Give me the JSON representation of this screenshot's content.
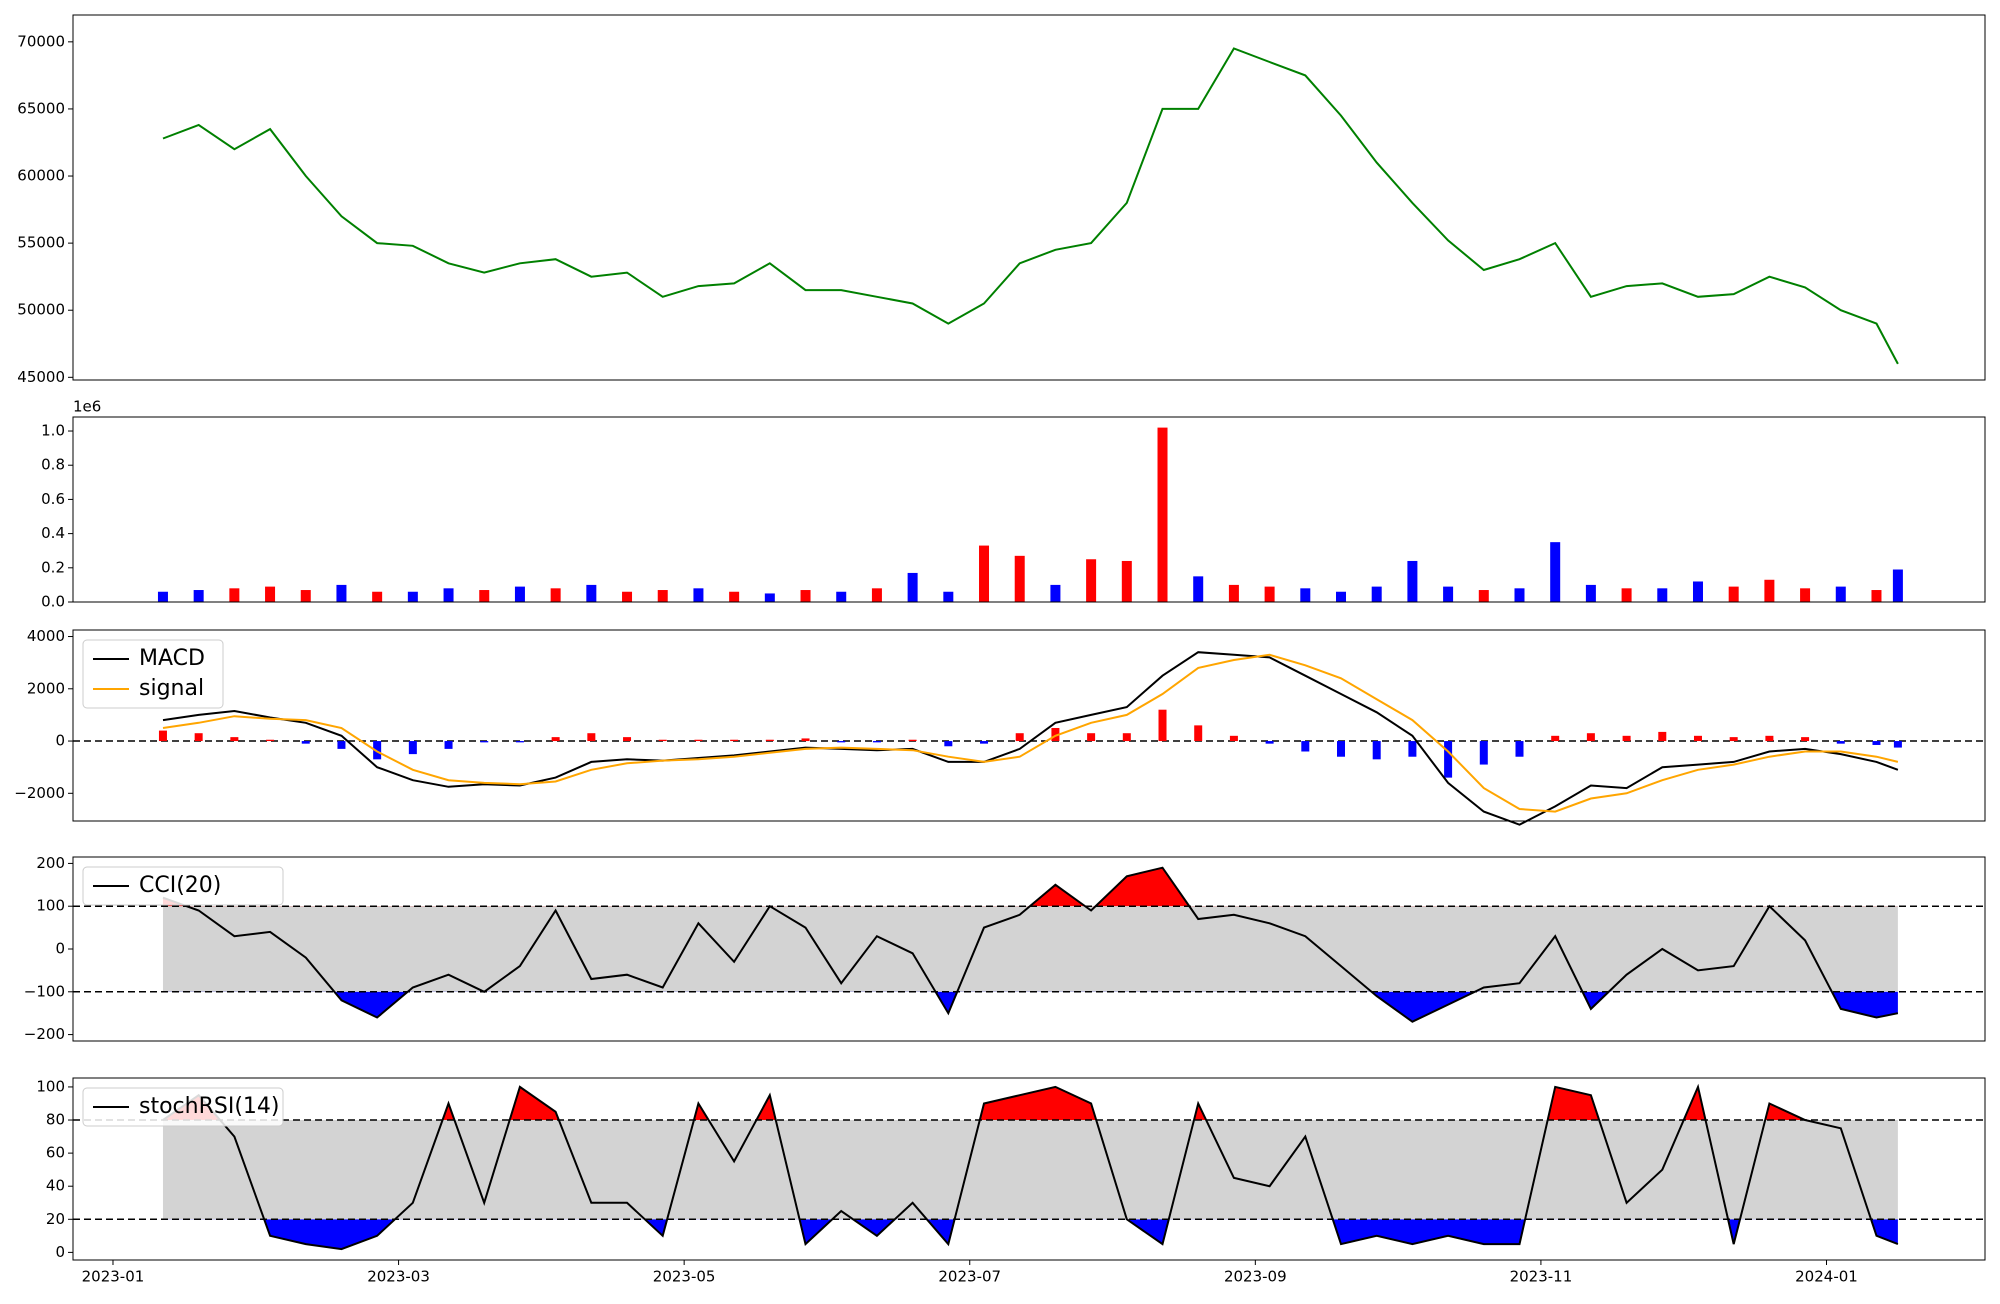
{
  "chart_data": [
    {
      "type": "line",
      "x": [
        0.35,
        0.6,
        0.85,
        1.1,
        1.35,
        1.6,
        1.85,
        2.1,
        2.35,
        2.6,
        2.85,
        3.1,
        3.35,
        3.6,
        3.85,
        4.1,
        4.35,
        4.6,
        4.85,
        5.1,
        5.35,
        5.6,
        5.85,
        6.1,
        6.35,
        6.6,
        6.85,
        7.1,
        7.35,
        7.6,
        7.85,
        8.1,
        8.35,
        8.6,
        8.85,
        9.1,
        9.35,
        9.6,
        9.85,
        10.1,
        10.35,
        10.6,
        10.85,
        11.1,
        11.35,
        11.6,
        11.85,
        12.1,
        12.35,
        12.5
      ],
      "series": [
        {
          "color": "green",
          "values": [
            62800,
            63800,
            62000,
            63500,
            60000,
            57000,
            55000,
            54800,
            53500,
            52800,
            53500,
            53800,
            52500,
            52800,
            51000,
            51800,
            52000,
            53500,
            51500,
            51500,
            51000,
            50500,
            49000,
            50500,
            53500,
            54500,
            55000,
            58000,
            65000,
            65000,
            69500,
            68500,
            67500,
            64500,
            61000,
            58000,
            55200,
            53000,
            53800,
            55000,
            51000,
            51800,
            52000,
            51000,
            51200,
            52500,
            51700,
            50000,
            49000,
            46000
          ]
        }
      ],
      "ylim": [
        44800,
        72000
      ],
      "yticks": [
        45000,
        50000,
        55000,
        60000,
        65000,
        70000
      ]
    },
    {
      "type": "bar",
      "values": [
        60000,
        70000,
        80000,
        90000,
        70000,
        100000,
        60000,
        60000,
        80000,
        70000,
        90000,
        80000,
        100000,
        60000,
        70000,
        80000,
        60000,
        50000,
        70000,
        60000,
        80000,
        170000,
        60000,
        330000,
        270000,
        100000,
        250000,
        240000,
        1020000,
        150000,
        100000,
        90000,
        80000,
        60000,
        90000,
        240000,
        90000,
        70000,
        80000,
        350000,
        100000,
        80000,
        80000,
        120000,
        90000,
        130000,
        80000,
        90000,
        70000,
        190000
      ],
      "colors": [
        "blue",
        "blue",
        "red",
        "red",
        "red",
        "blue",
        "red",
        "blue",
        "blue",
        "red",
        "blue",
        "red",
        "blue",
        "red",
        "red",
        "blue",
        "red",
        "blue",
        "red",
        "blue",
        "red",
        "blue",
        "blue",
        "red",
        "red",
        "blue",
        "red",
        "red",
        "red",
        "blue",
        "red",
        "red",
        "blue",
        "blue",
        "blue",
        "blue",
        "blue",
        "red",
        "blue",
        "blue",
        "blue",
        "red",
        "blue",
        "blue",
        "red",
        "red",
        "red",
        "blue",
        "red",
        "blue"
      ],
      "ylim": [
        0,
        1082000
      ],
      "yticks": [
        {
          "value": 0,
          "label": "0.0"
        },
        {
          "value": 200000,
          "label": "0.2"
        },
        {
          "value": 400000,
          "label": "0.4"
        },
        {
          "value": 600000,
          "label": "0.6"
        },
        {
          "value": 800000,
          "label": "0.8"
        },
        {
          "value": 1000000,
          "label": "1.0"
        }
      ],
      "offset_label": "1e6"
    },
    {
      "type": "macd",
      "series": [
        {
          "name": "MACD",
          "color": "black",
          "values": [
            800,
            1000,
            1150,
            900,
            700,
            200,
            -1000,
            -1500,
            -1750,
            -1650,
            -1700,
            -1400,
            -800,
            -700,
            -750,
            -650,
            -550,
            -400,
            -250,
            -300,
            -350,
            -300,
            -800,
            -800,
            -300,
            700,
            1000,
            1300,
            2500,
            3400,
            3300,
            3200,
            2500,
            1800,
            1100,
            200,
            -1600,
            -2700,
            -3200,
            -2500,
            -1700,
            -1800,
            -1000,
            -900,
            -800,
            -400,
            -300,
            -500,
            -800,
            -1100
          ]
        },
        {
          "name": "signal",
          "color": "orange",
          "values": [
            500,
            700,
            950,
            850,
            800,
            500,
            -400,
            -1100,
            -1500,
            -1600,
            -1650,
            -1550,
            -1100,
            -850,
            -750,
            -700,
            -600,
            -450,
            -300,
            -250,
            -300,
            -350,
            -600,
            -800,
            -600,
            200,
            700,
            1000,
            1800,
            2800,
            3100,
            3300,
            2900,
            2400,
            1600,
            800,
            -400,
            -1800,
            -2600,
            -2700,
            -2200,
            -2000,
            -1500,
            -1100,
            -900,
            -600,
            -400,
            -400,
            -600,
            -800
          ]
        }
      ],
      "histogram": {
        "pos_color": "red",
        "neg_color": "blue",
        "values": [
          400,
          300,
          150,
          50,
          -100,
          -300,
          -700,
          -500,
          -300,
          -50,
          -50,
          150,
          300,
          150,
          50,
          50,
          50,
          50,
          100,
          -50,
          -50,
          50,
          -200,
          -100,
          300,
          500,
          300,
          300,
          1200,
          600,
          200,
          -100,
          -400,
          -600,
          -700,
          -600,
          -1400,
          -900,
          -600,
          200,
          300,
          200,
          350,
          200,
          150,
          200,
          150,
          -100,
          -150,
          -250
        ]
      },
      "hlines": [
        0
      ],
      "legend": "upper left",
      "ylim": [
        -3060,
        4250
      ],
      "yticks": [
        {
          "value": -2000,
          "label": "−2000"
        },
        0,
        2000,
        4000
      ]
    },
    {
      "type": "oscillator",
      "series": [
        {
          "name": "CCI(20)",
          "color": "black",
          "values": [
            120,
            90,
            30,
            40,
            -20,
            -120,
            -160,
            -90,
            -60,
            -100,
            -40,
            90,
            -70,
            -60,
            -90,
            60,
            -30,
            100,
            50,
            -80,
            30,
            -10,
            -150,
            50,
            80,
            150,
            90,
            170,
            190,
            70,
            80,
            60,
            30,
            -40,
            -110,
            -170,
            -130,
            -90,
            -80,
            30,
            -140,
            -60,
            0,
            -50,
            -40,
            100,
            20,
            -140,
            -160,
            -150
          ]
        }
      ],
      "band": [
        -100,
        100
      ],
      "band_color": "lightgray",
      "upper_color": "red",
      "lower_color": "blue",
      "legend": "upper left",
      "ylim": [
        -215,
        215
      ],
      "yticks": [
        {
          "value": -200,
          "label": "−200"
        },
        {
          "value": -100,
          "label": "−100"
        },
        0,
        100,
        200
      ]
    },
    {
      "type": "oscillator",
      "series": [
        {
          "name": "stochRSI(14)",
          "color": "black",
          "values": [
            80,
            95,
            70,
            10,
            5,
            2,
            10,
            30,
            90,
            30,
            100,
            85,
            30,
            30,
            10,
            90,
            55,
            95,
            5,
            25,
            10,
            30,
            5,
            90,
            95,
            100,
            90,
            20,
            5,
            90,
            45,
            40,
            70,
            5,
            10,
            5,
            10,
            5,
            5,
            100,
            95,
            30,
            50,
            100,
            5,
            90,
            80,
            75,
            10,
            5
          ]
        }
      ],
      "band": [
        20,
        80
      ],
      "band_color": "lightgray",
      "upper_color": "red",
      "lower_color": "blue",
      "legend": "upper left",
      "ylim": [
        -4.6,
        105.4
      ],
      "yticks": [
        0,
        20,
        40,
        60,
        80,
        100
      ],
      "xlim": [
        -0.28,
        13.11
      ],
      "xticks": [
        {
          "value": 0,
          "label": "2023-01"
        },
        {
          "value": 2,
          "label": "2023-03"
        },
        {
          "value": 4,
          "label": "2023-05"
        },
        {
          "value": 6,
          "label": "2023-07"
        },
        {
          "value": 8,
          "label": "2023-09"
        },
        {
          "value": 10,
          "label": "2023-11"
        },
        {
          "value": 12,
          "label": "2024-01"
        }
      ]
    }
  ]
}
